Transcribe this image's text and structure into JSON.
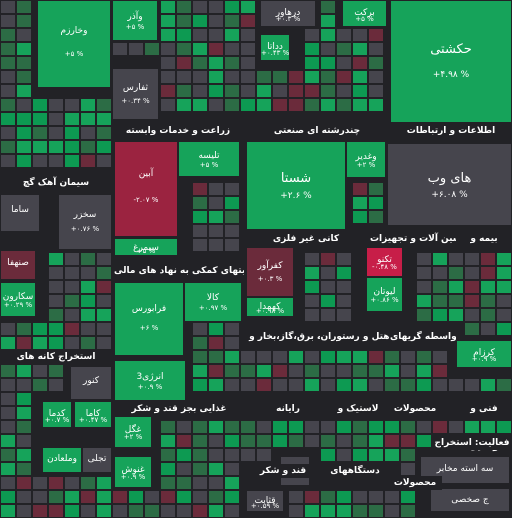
{
  "colors": {
    "up3": "#0d9a52",
    "up2": "#16a35a",
    "up1": "#2c6c45",
    "flat": "#46454d",
    "down1": "#6b2b3b",
    "down2": "#9b2340",
    "down3": "#c71e48"
  },
  "sectors": [
    "اطلاعات و ارتباطات",
    "چندرشته ای صنعتی",
    "زراعت و خدمات وابسته",
    "سیمان آهک گچ",
    "بیمه و",
    "ماشین آلات و تجهیزات",
    "کانی غیر فلزی",
    "فعالیتهای کمکی به نهاد های مالی",
    "عرضه برق،گاز،بخار و",
    "هتل و رستوران",
    "واسطه گریهای",
    "استخراج کانه های",
    "فنی و",
    "محصولات",
    "لاستیک و",
    "رایانه",
    "غذایی بجز قند و شکر",
    "وسایل",
    "دستگاههای",
    "قند و شکر",
    "محصولات",
    "فعالیت: استخراج"
  ],
  "tiles": [
    {
      "name": "حکشتی",
      "pct": "+۴.۹۸ %"
    },
    {
      "name": "های وب",
      "pct": "+۶.۰۸ %"
    },
    {
      "name": "شستا",
      "pct": "+۲.۶ %"
    },
    {
      "name": "آبین",
      "pct": "-۲.۰۷ %"
    },
    {
      "name": "فرابورس",
      "pct": "+۶ %"
    },
    {
      "name": "وآذر",
      "pct": "+۵ %"
    },
    {
      "name": "وخارزم",
      "pct": "+۵ %"
    },
    {
      "name": "ثفارس",
      "pct": "+۰.۳۴ %"
    },
    {
      "name": "برکت",
      "pct": "+۵ %"
    },
    {
      "name": "درهاور",
      "pct": "+۰.۳ %"
    },
    {
      "name": "دداتا",
      "pct": "+۰.۴۳ %"
    },
    {
      "name": "تلیسه",
      "pct": "+۵ %"
    },
    {
      "name": "وغدیر",
      "pct": "+۲ %"
    },
    {
      "name": "سخزر",
      "pct": "+۰.۷۶ %"
    },
    {
      "name": "سیمرغ",
      "pct": "+۵ %"
    },
    {
      "name": "کفرآور",
      "pct": "+۰.۳ %"
    },
    {
      "name": "تکنو",
      "pct": "-۰.۴۸ %"
    },
    {
      "name": "لیوتان",
      "pct": "+۰.۸۶ %"
    },
    {
      "name": "کهمدا",
      "pct": "+۰.۹۸ %"
    },
    {
      "name": "کالا",
      "pct": "+۰.۹۷ %"
    },
    {
      "name": "صنهفا",
      "pct": ""
    },
    {
      "name": "سکارون",
      "pct": "+۰.۲۹ %"
    },
    {
      "name": "ساما",
      "pct": ""
    },
    {
      "name": "کنور",
      "pct": ""
    },
    {
      "name": "انرژی3",
      "pct": "+۰.۹ %"
    },
    {
      "name": "کرزام",
      "pct": "+۰.۹ %"
    },
    {
      "name": "کدما",
      "pct": "+۰.۷ %"
    },
    {
      "name": "کاما",
      "pct": "+۰.۴۷ %"
    },
    {
      "name": "غگل",
      "pct": "+۲ %"
    },
    {
      "name": "وملعادن",
      "pct": ""
    },
    {
      "name": "تجلی",
      "pct": ""
    },
    {
      "name": "غنوش",
      "pct": "+۰.۹ %"
    },
    {
      "name": "قثابت",
      "pct": "+۰.۵۹ %"
    },
    {
      "name": "قند",
      "pct": ""
    },
    {
      "name": "سه استه مخابر",
      "pct": ""
    },
    {
      "name": "ج صخصی",
      "pct": ""
    }
  ]
}
